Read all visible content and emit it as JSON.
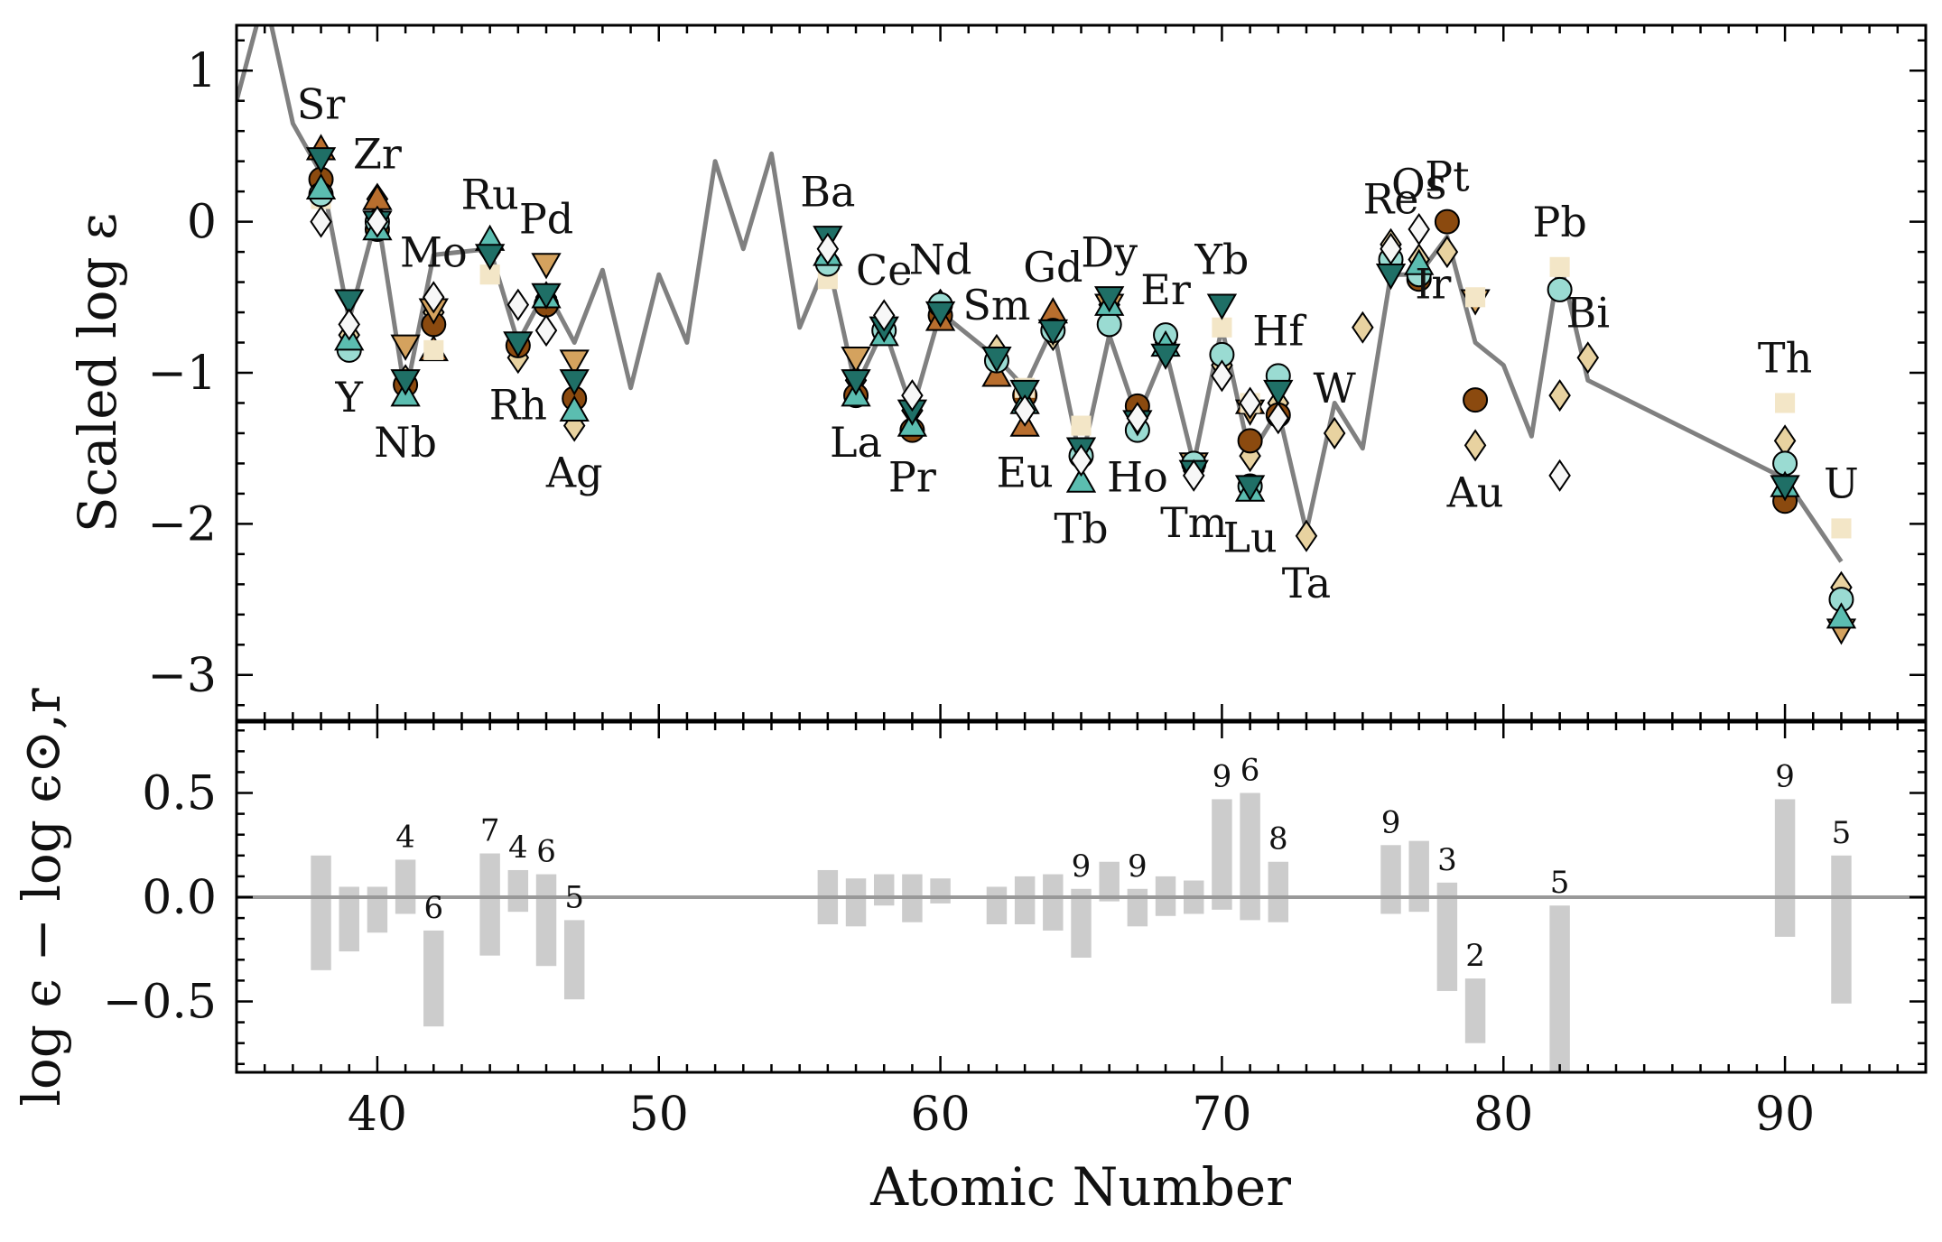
{
  "chart_data": [
    {
      "type": "scatter",
      "panel": "top",
      "xlabel": "",
      "ylabel": "Scaled log ε",
      "xlim": [
        35,
        95
      ],
      "ylim": [
        -3.3,
        1.3
      ],
      "yticks": [
        1,
        0,
        -1,
        -2,
        -3
      ],
      "ytick_labels": [
        "1",
        "0",
        "−1",
        "−2",
        "−3"
      ],
      "grid": false,
      "solar_r_pattern": {
        "line_color": "#808080",
        "x": [
          35,
          36,
          37,
          38,
          39,
          40,
          41,
          42,
          44,
          45,
          46,
          47,
          48,
          49,
          50,
          51,
          52,
          53,
          54,
          55,
          56,
          57,
          58,
          59,
          60,
          62,
          63,
          64,
          65,
          66,
          67,
          68,
          69,
          70,
          71,
          72,
          73,
          74,
          75,
          76,
          77,
          78,
          79,
          80,
          81,
          82,
          83,
          90,
          92
        ],
        "y": [
          0.8,
          1.5,
          0.65,
          0.32,
          -0.65,
          0.05,
          -1.15,
          -0.22,
          -0.18,
          -0.8,
          -0.45,
          -0.8,
          -0.32,
          -1.1,
          -0.35,
          -0.8,
          0.4,
          -0.18,
          0.45,
          -0.7,
          -0.25,
          -1.1,
          -0.7,
          -1.25,
          -0.6,
          -0.9,
          -1.1,
          -0.7,
          -1.6,
          -0.75,
          -1.3,
          -0.85,
          -1.6,
          -0.7,
          -1.55,
          -1.25,
          -2.05,
          -1.2,
          -1.5,
          -0.35,
          -0.35,
          -0.1,
          -0.8,
          -0.95,
          -1.42,
          -0.25,
          -1.05,
          -1.7,
          -2.25
        ]
      },
      "elements": [
        {
          "symbol": "Sr",
          "z": 38,
          "label_pos": "above"
        },
        {
          "symbol": "Y",
          "z": 39,
          "label_pos": "below"
        },
        {
          "symbol": "Zr",
          "z": 40,
          "label_pos": "above"
        },
        {
          "symbol": "Nb",
          "z": 41,
          "label_pos": "below"
        },
        {
          "symbol": "Mo",
          "z": 42,
          "label_pos": "above"
        },
        {
          "symbol": "Ru",
          "z": 44,
          "label_pos": "above"
        },
        {
          "symbol": "Rh",
          "z": 45,
          "label_pos": "below"
        },
        {
          "symbol": "Pd",
          "z": 46,
          "label_pos": "above"
        },
        {
          "symbol": "Ag",
          "z": 47,
          "label_pos": "below"
        },
        {
          "symbol": "Ba",
          "z": 56,
          "label_pos": "above"
        },
        {
          "symbol": "La",
          "z": 57,
          "label_pos": "below"
        },
        {
          "symbol": "Ce",
          "z": 58,
          "label_pos": "above"
        },
        {
          "symbol": "Pr",
          "z": 59,
          "label_pos": "below"
        },
        {
          "symbol": "Nd",
          "z": 60,
          "label_pos": "above"
        },
        {
          "symbol": "Sm",
          "z": 62,
          "label_pos": "above"
        },
        {
          "symbol": "Eu",
          "z": 63,
          "label_pos": "below"
        },
        {
          "symbol": "Gd",
          "z": 64,
          "label_pos": "above"
        },
        {
          "symbol": "Tb",
          "z": 65,
          "label_pos": "below"
        },
        {
          "symbol": "Dy",
          "z": 66,
          "label_pos": "above"
        },
        {
          "symbol": "Ho",
          "z": 67,
          "label_pos": "below"
        },
        {
          "symbol": "Er",
          "z": 68,
          "label_pos": "above"
        },
        {
          "symbol": "Tm",
          "z": 69,
          "label_pos": "below"
        },
        {
          "symbol": "Yb",
          "z": 70,
          "label_pos": "above"
        },
        {
          "symbol": "Lu",
          "z": 71,
          "label_pos": "below"
        },
        {
          "symbol": "Hf",
          "z": 72,
          "label_pos": "above"
        },
        {
          "symbol": "Ta",
          "z": 73,
          "label_pos": "below"
        },
        {
          "symbol": "W",
          "z": 74,
          "label_pos": "above"
        },
        {
          "symbol": "Re",
          "z": 76,
          "label_pos": "above"
        },
        {
          "symbol": "Os",
          "z": 77,
          "label_pos": "above"
        },
        {
          "symbol": "Ir",
          "z": 77.5,
          "label_pos": "below"
        },
        {
          "symbol": "Pt",
          "z": 78,
          "label_pos": "above"
        },
        {
          "symbol": "Au",
          "z": 79,
          "label_pos": "below"
        },
        {
          "symbol": "Pb",
          "z": 82,
          "label_pos": "above"
        },
        {
          "symbol": "Bi",
          "z": 83,
          "label_pos": "above"
        },
        {
          "symbol": "Th",
          "z": 90,
          "label_pos": "above"
        },
        {
          "symbol": "U",
          "z": 92,
          "label_pos": "above"
        }
      ],
      "series": [
        {
          "marker": "diamond",
          "color": "#e8d2a0",
          "x": [
            38,
            39,
            40,
            41,
            42,
            44,
            45,
            46,
            47,
            56,
            57,
            58,
            59,
            60,
            62,
            63,
            64,
            65,
            66,
            67,
            68,
            69,
            70,
            71,
            72,
            73,
            74,
            75,
            76,
            77,
            78,
            79,
            82,
            83,
            90,
            92
          ],
          "y": [
            0.25,
            -0.75,
            0.15,
            -1.05,
            -0.6,
            -0.2,
            -0.9,
            -0.5,
            -1.35,
            -0.25,
            -1.05,
            -0.65,
            -1.25,
            -0.55,
            -0.85,
            -1.15,
            -0.75,
            -1.55,
            -0.55,
            -1.25,
            -0.8,
            -1.65,
            -0.95,
            -1.55,
            -1.2,
            -2.08,
            -1.4,
            -0.7,
            -0.15,
            -0.25,
            -0.2,
            -1.48,
            -1.15,
            -0.9,
            -1.45,
            -2.42
          ]
        },
        {
          "marker": "circle",
          "color": "#8b4a0f",
          "x": [
            38,
            40,
            41,
            42,
            45,
            46,
            47,
            57,
            59,
            60,
            63,
            67,
            71,
            72,
            77,
            78,
            79,
            90
          ],
          "y": [
            0.28,
            -0.05,
            -1.08,
            -0.68,
            -0.82,
            -0.55,
            -1.17,
            -1.15,
            -1.38,
            -0.62,
            -1.15,
            -1.22,
            -1.45,
            -1.28,
            -0.38,
            0.0,
            -1.18,
            -1.85
          ]
        },
        {
          "marker": "triangle-up",
          "color": "#b86e2e",
          "x": [
            38,
            40,
            42,
            60,
            62,
            63,
            64,
            71
          ],
          "y": [
            0.48,
            0.15,
            -0.85,
            -0.65,
            -1.02,
            -1.35,
            -0.6,
            -1.2
          ]
        },
        {
          "marker": "triangle-down",
          "color": "#d4a25e",
          "x": [
            41,
            42,
            46,
            47,
            57,
            66,
            69,
            71,
            79,
            92
          ],
          "y": [
            -0.82,
            -0.58,
            -0.28,
            -0.92,
            -0.9,
            -0.55,
            -1.6,
            -1.25,
            -0.52,
            -2.7
          ]
        },
        {
          "marker": "square",
          "color": "#f3e6c7",
          "x": [
            38,
            42,
            44,
            56,
            63,
            65,
            70,
            71,
            79,
            82,
            90,
            92
          ],
          "y": [
            0.15,
            -0.85,
            -0.35,
            -0.38,
            -1.1,
            -1.35,
            -0.7,
            -1.2,
            -0.5,
            -0.3,
            -1.2,
            -2.03
          ]
        },
        {
          "marker": "circle",
          "color": "#9adbd2",
          "x": [
            38,
            39,
            40,
            56,
            58,
            60,
            62,
            64,
            65,
            66,
            67,
            68,
            69,
            70,
            71,
            72,
            76,
            77,
            82,
            90,
            92
          ],
          "y": [
            0.18,
            -0.85,
            0.0,
            -0.28,
            -0.72,
            -0.55,
            -0.92,
            -0.72,
            -1.55,
            -0.68,
            -1.38,
            -0.75,
            -1.6,
            -0.88,
            -1.75,
            -1.02,
            -0.25,
            -0.35,
            -0.45,
            -1.6,
            -2.5
          ]
        },
        {
          "marker": "triangle-up",
          "color": "#5bbdb0",
          "x": [
            38,
            39,
            40,
            41,
            44,
            46,
            47,
            56,
            57,
            58,
            59,
            63,
            65,
            66,
            68,
            71,
            77,
            90,
            92
          ],
          "y": [
            0.22,
            -0.78,
            -0.05,
            -1.15,
            -0.12,
            -0.5,
            -1.25,
            -0.22,
            -1.15,
            -0.75,
            -1.35,
            -1.2,
            -1.72,
            -0.55,
            -0.82,
            -1.78,
            -0.28,
            -1.75,
            -2.62
          ]
        },
        {
          "marker": "triangle-down",
          "color": "#1f6f66",
          "x": [
            38,
            39,
            40,
            41,
            44,
            45,
            46,
            47,
            56,
            57,
            58,
            59,
            60,
            62,
            63,
            64,
            65,
            66,
            67,
            68,
            69,
            70,
            71,
            72,
            76,
            90
          ],
          "y": [
            0.42,
            -0.52,
            0.0,
            -1.05,
            -0.22,
            -0.8,
            -0.48,
            -1.05,
            -0.1,
            -1.05,
            -0.7,
            -1.25,
            -0.6,
            -0.9,
            -1.12,
            -0.72,
            -1.5,
            -0.5,
            -1.32,
            -0.88,
            -1.65,
            -0.55,
            -1.75,
            -1.12,
            -0.35,
            -1.75
          ]
        },
        {
          "marker": "diamond",
          "color": "#f7f7f7",
          "x": [
            38,
            39,
            40,
            42,
            45,
            46,
            56,
            58,
            59,
            63,
            65,
            67,
            69,
            70,
            71,
            72,
            76,
            77,
            82
          ],
          "y": [
            0.0,
            -0.68,
            0.0,
            -0.5,
            -0.55,
            -0.72,
            -0.18,
            -0.62,
            -1.15,
            -1.25,
            -1.58,
            -1.3,
            -1.68,
            -1.02,
            -1.2,
            -1.3,
            -0.18,
            -0.05,
            -1.68
          ]
        }
      ]
    },
    {
      "type": "bar",
      "panel": "bottom",
      "xlabel": "Atomic Number",
      "ylabel": "log ϵ − log ϵ⊙,r",
      "xlim": [
        35,
        95
      ],
      "ylim": [
        -0.84,
        0.84
      ],
      "xticks": [
        40,
        50,
        60,
        70,
        80,
        90
      ],
      "xtick_labels": [
        "40",
        "50",
        "60",
        "70",
        "80",
        "90"
      ],
      "yticks": [
        0.5,
        0.0,
        -0.5
      ],
      "ytick_labels": [
        "0.5",
        "0.0",
        "−0.5"
      ],
      "zero_line": true,
      "bar_color": "#cccccc",
      "bars": [
        {
          "z": 38,
          "low": -0.35,
          "high": 0.2,
          "count": ""
        },
        {
          "z": 39,
          "low": -0.26,
          "high": 0.05,
          "count": ""
        },
        {
          "z": 40,
          "low": -0.17,
          "high": 0.05,
          "count": ""
        },
        {
          "z": 41,
          "low": -0.08,
          "high": 0.18,
          "count": "4"
        },
        {
          "z": 42,
          "low": -0.62,
          "high": -0.16,
          "count": "6"
        },
        {
          "z": 44,
          "low": -0.28,
          "high": 0.21,
          "count": "7"
        },
        {
          "z": 45,
          "low": -0.07,
          "high": 0.13,
          "count": "4"
        },
        {
          "z": 46,
          "low": -0.33,
          "high": 0.11,
          "count": "6"
        },
        {
          "z": 47,
          "low": -0.49,
          "high": -0.11,
          "count": "5"
        },
        {
          "z": 56,
          "low": -0.13,
          "high": 0.13,
          "count": ""
        },
        {
          "z": 57,
          "low": -0.14,
          "high": 0.09,
          "count": ""
        },
        {
          "z": 58,
          "low": -0.04,
          "high": 0.11,
          "count": ""
        },
        {
          "z": 59,
          "low": -0.12,
          "high": 0.11,
          "count": ""
        },
        {
          "z": 60,
          "low": -0.03,
          "high": 0.09,
          "count": ""
        },
        {
          "z": 62,
          "low": -0.13,
          "high": 0.05,
          "count": ""
        },
        {
          "z": 63,
          "low": -0.13,
          "high": 0.1,
          "count": ""
        },
        {
          "z": 64,
          "low": -0.16,
          "high": 0.11,
          "count": ""
        },
        {
          "z": 65,
          "low": -0.29,
          "high": 0.04,
          "count": "9"
        },
        {
          "z": 66,
          "low": -0.02,
          "high": 0.17,
          "count": ""
        },
        {
          "z": 67,
          "low": -0.14,
          "high": 0.04,
          "count": "9"
        },
        {
          "z": 68,
          "low": -0.09,
          "high": 0.1,
          "count": ""
        },
        {
          "z": 69,
          "low": -0.08,
          "high": 0.08,
          "count": ""
        },
        {
          "z": 70,
          "low": -0.06,
          "high": 0.47,
          "count": "9"
        },
        {
          "z": 71,
          "low": -0.11,
          "high": 0.5,
          "count": "6"
        },
        {
          "z": 72,
          "low": -0.12,
          "high": 0.17,
          "count": "8"
        },
        {
          "z": 76,
          "low": -0.08,
          "high": 0.25,
          "count": "9"
        },
        {
          "z": 77,
          "low": -0.07,
          "high": 0.27,
          "count": ""
        },
        {
          "z": 78,
          "low": -0.45,
          "high": 0.07,
          "count": "3"
        },
        {
          "z": 79,
          "low": -0.7,
          "high": -0.39,
          "count": "2"
        },
        {
          "z": 82,
          "low": -0.86,
          "high": -0.04,
          "count": "5"
        },
        {
          "z": 90,
          "low": -0.19,
          "high": 0.47,
          "count": "9"
        },
        {
          "z": 92,
          "low": -0.51,
          "high": 0.2,
          "count": "5"
        }
      ]
    }
  ]
}
